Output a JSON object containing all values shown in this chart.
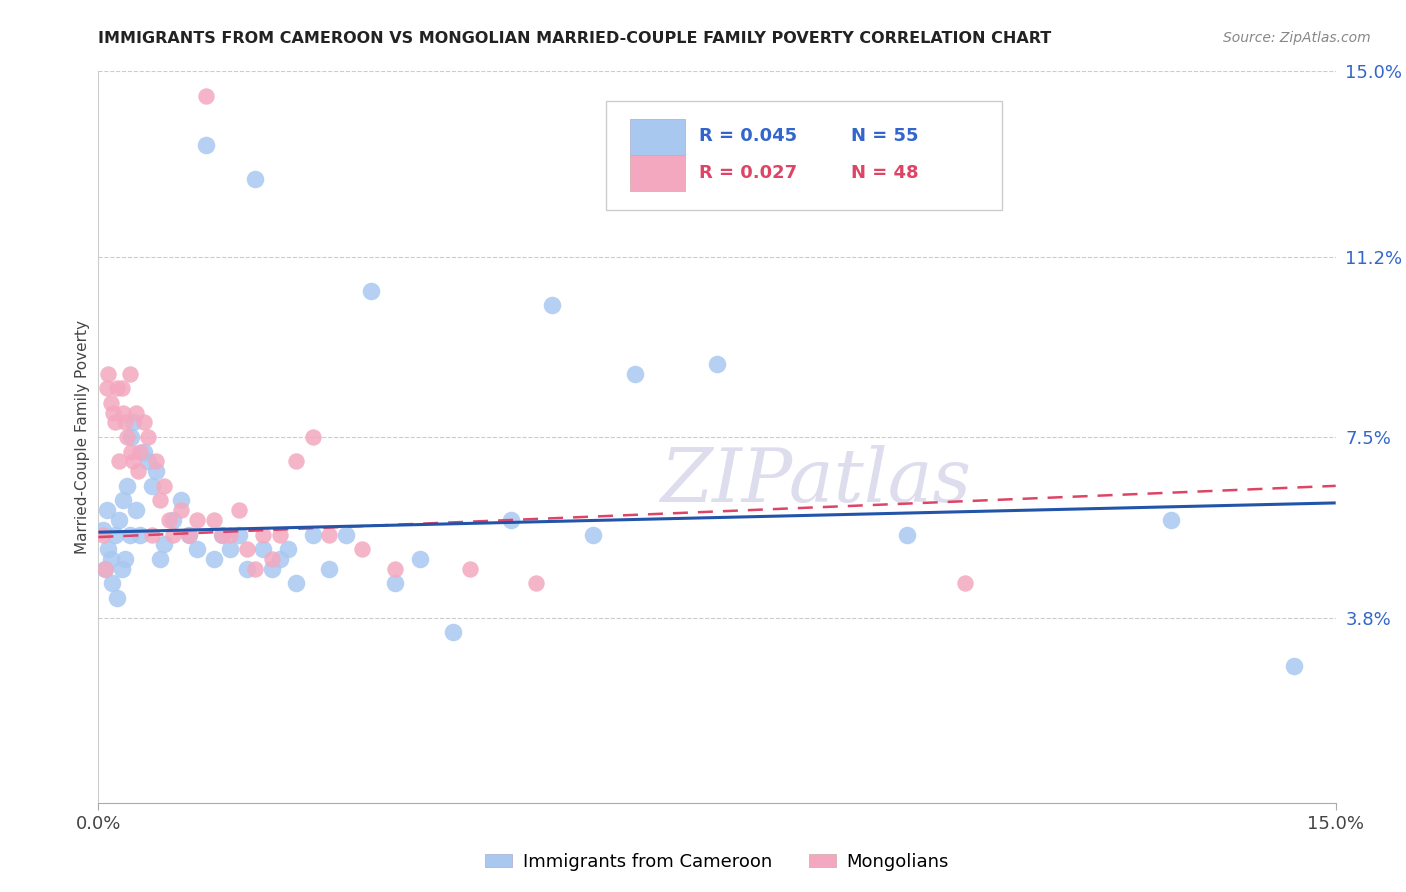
{
  "title": "IMMIGRANTS FROM CAMEROON VS MONGOLIAN MARRIED-COUPLE FAMILY POVERTY CORRELATION CHART",
  "source": "Source: ZipAtlas.com",
  "ylabel": "Married-Couple Family Poverty",
  "ytick_values": [
    3.8,
    7.5,
    11.2,
    15.0
  ],
  "ytick_labels": [
    "3.8%",
    "7.5%",
    "11.2%",
    "15.0%"
  ],
  "xlim": [
    0.0,
    15.0
  ],
  "ylim": [
    0.0,
    15.0
  ],
  "legend_r1": "R = 0.045",
  "legend_n1": "N = 55",
  "legend_r2": "R = 0.027",
  "legend_n2": "N = 48",
  "color_blue": "#A8C8F0",
  "color_pink": "#F4A8C0",
  "color_line_blue": "#2255AA",
  "color_line_pink": "#DD4466",
  "watermark": "ZIPatlas",
  "cam_line_x0": 0.0,
  "cam_line_y0": 5.55,
  "cam_line_x1": 15.0,
  "cam_line_y1": 6.15,
  "mon_line_x0": 0.0,
  "mon_line_y0": 5.45,
  "mon_line_x1": 15.0,
  "mon_line_y1": 6.5,
  "cameroon_x": [
    0.05,
    0.08,
    0.1,
    0.12,
    0.15,
    0.17,
    0.2,
    0.22,
    0.25,
    0.28,
    0.3,
    0.32,
    0.35,
    0.38,
    0.4,
    0.42,
    0.45,
    0.5,
    0.55,
    0.6,
    0.65,
    0.7,
    0.75,
    0.8,
    0.9,
    1.0,
    1.1,
    1.2,
    1.3,
    1.4,
    1.5,
    1.6,
    1.7,
    1.8,
    1.9,
    2.0,
    2.1,
    2.2,
    2.3,
    2.4,
    2.6,
    2.8,
    3.0,
    3.3,
    3.6,
    3.9,
    4.3,
    5.0,
    5.5,
    6.0,
    6.5,
    7.5,
    9.8,
    13.0,
    14.5
  ],
  "cameroon_y": [
    5.6,
    4.8,
    6.0,
    5.2,
    5.0,
    4.5,
    5.5,
    4.2,
    5.8,
    4.8,
    6.2,
    5.0,
    6.5,
    5.5,
    7.5,
    7.8,
    6.0,
    5.5,
    7.2,
    7.0,
    6.5,
    6.8,
    5.0,
    5.3,
    5.8,
    6.2,
    5.5,
    5.2,
    13.5,
    5.0,
    5.5,
    5.2,
    5.5,
    4.8,
    12.8,
    5.2,
    4.8,
    5.0,
    5.2,
    4.5,
    5.5,
    4.8,
    5.5,
    10.5,
    4.5,
    5.0,
    3.5,
    5.8,
    10.2,
    5.5,
    8.8,
    9.0,
    5.5,
    5.8,
    2.8
  ],
  "mongolian_x": [
    0.05,
    0.08,
    0.1,
    0.12,
    0.15,
    0.18,
    0.2,
    0.22,
    0.25,
    0.28,
    0.3,
    0.32,
    0.35,
    0.38,
    0.4,
    0.42,
    0.45,
    0.48,
    0.5,
    0.55,
    0.6,
    0.65,
    0.7,
    0.75,
    0.8,
    0.85,
    0.9,
    1.0,
    1.1,
    1.2,
    1.3,
    1.4,
    1.5,
    1.6,
    1.7,
    1.8,
    1.9,
    2.0,
    2.1,
    2.2,
    2.4,
    2.6,
    2.8,
    3.2,
    3.6,
    4.5,
    5.3,
    10.5
  ],
  "mongolian_y": [
    5.5,
    4.8,
    8.5,
    8.8,
    8.2,
    8.0,
    7.8,
    8.5,
    7.0,
    8.5,
    8.0,
    7.8,
    7.5,
    8.8,
    7.2,
    7.0,
    8.0,
    6.8,
    7.2,
    7.8,
    7.5,
    5.5,
    7.0,
    6.2,
    6.5,
    5.8,
    5.5,
    6.0,
    5.5,
    5.8,
    14.5,
    5.8,
    5.5,
    5.5,
    6.0,
    5.2,
    4.8,
    5.5,
    5.0,
    5.5,
    7.0,
    7.5,
    5.5,
    5.2,
    4.8,
    4.8,
    4.5,
    4.5
  ]
}
